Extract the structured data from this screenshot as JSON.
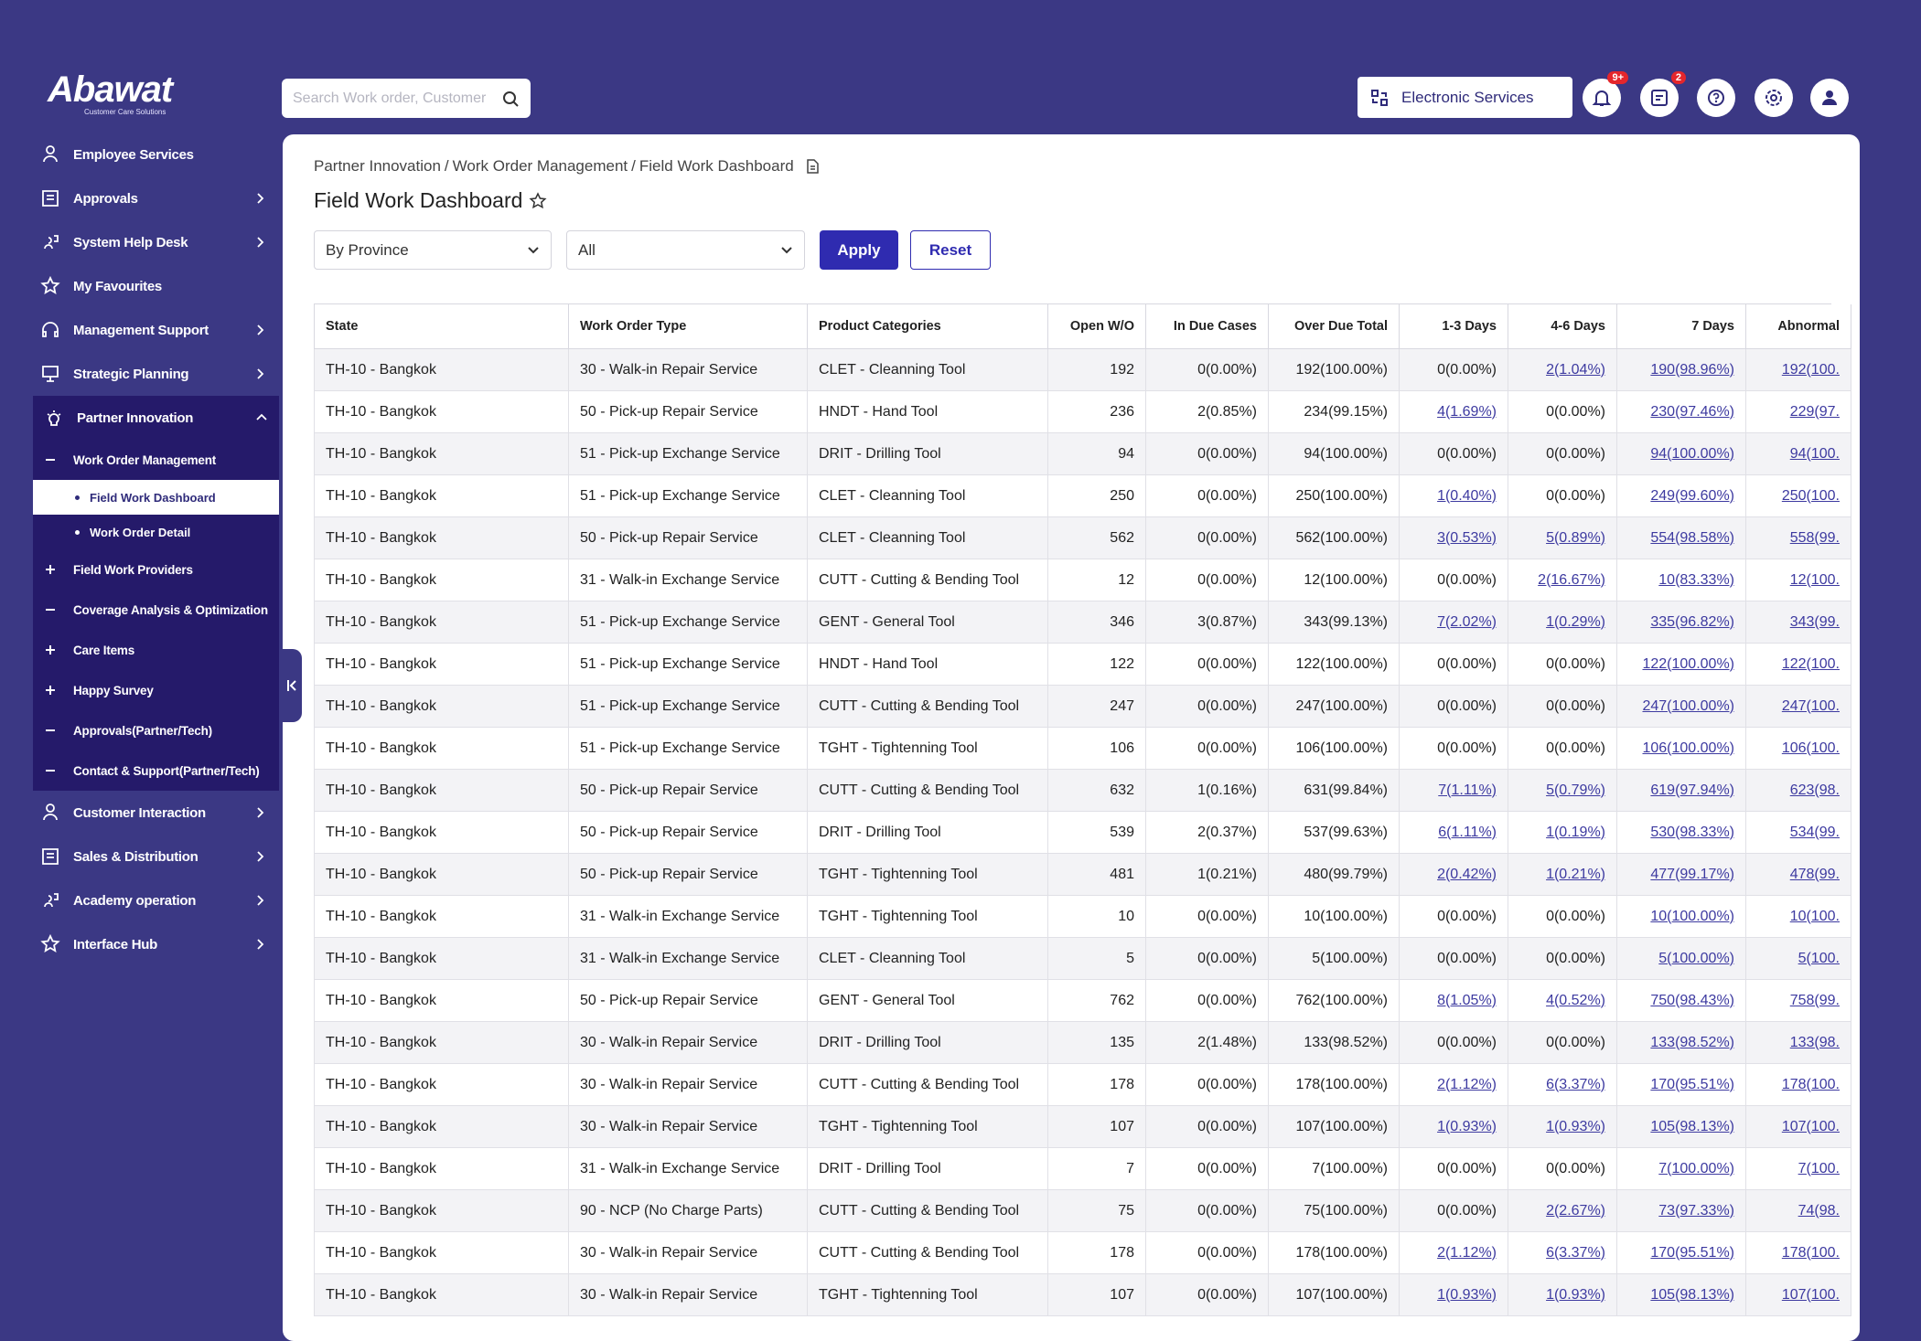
{
  "logo": {
    "name": "Abawat",
    "tagline": "Customer Care Solutions"
  },
  "search_placeholder": "Search Work order, Customer",
  "topbar": {
    "service": "Electronic Services",
    "notification_badge": "9+",
    "task_badge": "2"
  },
  "sidebar": [
    {
      "label": "Employee Services"
    },
    {
      "label": "Approvals",
      "arrow": "right"
    },
    {
      "label": "System Help Desk",
      "arrow": "right"
    },
    {
      "label": "My Favourites"
    },
    {
      "label": "Management Support",
      "arrow": "right"
    },
    {
      "label": "Strategic Planning",
      "arrow": "right"
    },
    {
      "label": "Partner Innovation",
      "arrow": "up",
      "children": [
        {
          "label": "Work Order Management",
          "expanded": true,
          "children": [
            {
              "label": "Field Work Dashboard",
              "active": true
            },
            {
              "label": "Work Order Detail"
            }
          ]
        },
        {
          "label": "Field Work Providers",
          "expanded": false
        },
        {
          "label": "Coverage Analysis & Optimization",
          "expanded": true
        },
        {
          "label": "Care Items",
          "expanded": false
        },
        {
          "label": "Happy Survey",
          "expanded": false
        },
        {
          "label": "Approvals(Partner/Tech)",
          "expanded": true
        },
        {
          "label": "Contact & Support(Partner/Tech)",
          "expanded": true
        }
      ]
    },
    {
      "label": "Customer Interaction",
      "arrow": "right"
    },
    {
      "label": "Sales & Distribution",
      "arrow": "right"
    },
    {
      "label": "Academy operation",
      "arrow": "right"
    },
    {
      "label": "Interface Hub",
      "arrow": "right"
    }
  ],
  "breadcrumb": [
    "Partner Innovation",
    "Work Order Management",
    "Field Work Dashboard"
  ],
  "breadcrumb_separator": "/",
  "page_title": "Field Work Dashboard",
  "filters": {
    "group": "By Province",
    "value": "All",
    "apply": "Apply",
    "reset": "Reset"
  },
  "table": {
    "columns": [
      "State",
      "Work Order Type",
      "Product Categories",
      "Open W/O",
      "In Due Cases",
      "Over Due Total",
      "1-3 Days",
      "4-6 Days",
      "7 Days",
      "Abnormal"
    ],
    "rows": [
      [
        "TH-10 - Bangkok",
        "30 - Walk-in Repair Service",
        "CLET - Cleanning Tool",
        192,
        "0(0.00%)",
        "192(100.00%)",
        "0(0.00%)",
        "2(1.04%)",
        "190(98.96%)",
        "192(100."
      ],
      [
        "TH-10 - Bangkok",
        "50 - Pick-up Repair Service",
        "HNDT - Hand Tool",
        236,
        "2(0.85%)",
        "234(99.15%)",
        "4(1.69%)",
        "0(0.00%)",
        "230(97.46%)",
        "229(97."
      ],
      [
        "TH-10 - Bangkok",
        "51 - Pick-up Exchange Service",
        "DRIT - Drilling Tool",
        94,
        "0(0.00%)",
        "94(100.00%)",
        "0(0.00%)",
        "0(0.00%)",
        "94(100.00%)",
        "94(100."
      ],
      [
        "TH-10 - Bangkok",
        "51 - Pick-up Exchange Service",
        "CLET - Cleanning Tool",
        250,
        "0(0.00%)",
        "250(100.00%)",
        "1(0.40%)",
        "0(0.00%)",
        "249(99.60%)",
        "250(100."
      ],
      [
        "TH-10 - Bangkok",
        "50 - Pick-up Repair Service",
        "CLET - Cleanning Tool",
        562,
        "0(0.00%)",
        "562(100.00%)",
        "3(0.53%)",
        "5(0.89%)",
        "554(98.58%)",
        "558(99."
      ],
      [
        "TH-10 - Bangkok",
        "31 - Walk-in Exchange Service",
        "CUTT - Cutting & Bending Tool",
        12,
        "0(0.00%)",
        "12(100.00%)",
        "0(0.00%)",
        "2(16.67%)",
        "10(83.33%)",
        "12(100."
      ],
      [
        "TH-10 - Bangkok",
        "51 - Pick-up Exchange Service",
        "GENT - General Tool",
        346,
        "3(0.87%)",
        "343(99.13%)",
        "7(2.02%)",
        "1(0.29%)",
        "335(96.82%)",
        "343(99."
      ],
      [
        "TH-10 - Bangkok",
        "51 - Pick-up Exchange Service",
        "HNDT - Hand Tool",
        122,
        "0(0.00%)",
        "122(100.00%)",
        "0(0.00%)",
        "0(0.00%)",
        "122(100.00%)",
        "122(100."
      ],
      [
        "TH-10 - Bangkok",
        "51 - Pick-up Exchange Service",
        "CUTT - Cutting & Bending Tool",
        247,
        "0(0.00%)",
        "247(100.00%)",
        "0(0.00%)",
        "0(0.00%)",
        "247(100.00%)",
        "247(100."
      ],
      [
        "TH-10 - Bangkok",
        "51 - Pick-up Exchange Service",
        "TGHT - Tightenning Tool",
        106,
        "0(0.00%)",
        "106(100.00%)",
        "0(0.00%)",
        "0(0.00%)",
        "106(100.00%)",
        "106(100."
      ],
      [
        "TH-10 - Bangkok",
        "50 - Pick-up Repair Service",
        "CUTT - Cutting & Bending Tool",
        632,
        "1(0.16%)",
        "631(99.84%)",
        "7(1.11%)",
        "5(0.79%)",
        "619(97.94%)",
        "623(98."
      ],
      [
        "TH-10 - Bangkok",
        "50 - Pick-up Repair Service",
        "DRIT - Drilling Tool",
        539,
        "2(0.37%)",
        "537(99.63%)",
        "6(1.11%)",
        "1(0.19%)",
        "530(98.33%)",
        "534(99."
      ],
      [
        "TH-10 - Bangkok",
        "50 - Pick-up Repair Service",
        "TGHT - Tightenning Tool",
        481,
        "1(0.21%)",
        "480(99.79%)",
        "2(0.42%)",
        "1(0.21%)",
        "477(99.17%)",
        "478(99."
      ],
      [
        "TH-10 - Bangkok",
        "31 - Walk-in Exchange Service",
        "TGHT - Tightenning Tool",
        10,
        "0(0.00%)",
        "10(100.00%)",
        "0(0.00%)",
        "0(0.00%)",
        "10(100.00%)",
        "10(100."
      ],
      [
        "TH-10 - Bangkok",
        "31 - Walk-in Exchange Service",
        "CLET - Cleanning Tool",
        5,
        "0(0.00%)",
        "5(100.00%)",
        "0(0.00%)",
        "0(0.00%)",
        "5(100.00%)",
        "5(100."
      ],
      [
        "TH-10 - Bangkok",
        "50 - Pick-up Repair Service",
        "GENT - General Tool",
        762,
        "0(0.00%)",
        "762(100.00%)",
        "8(1.05%)",
        "4(0.52%)",
        "750(98.43%)",
        "758(99."
      ],
      [
        "TH-10 - Bangkok",
        "30 - Walk-in Repair Service",
        "DRIT - Drilling Tool",
        135,
        "2(1.48%)",
        "133(98.52%)",
        "0(0.00%)",
        "0(0.00%)",
        "133(98.52%)",
        "133(98."
      ],
      [
        "TH-10 - Bangkok",
        "30 - Walk-in Repair Service",
        "CUTT - Cutting & Bending Tool",
        178,
        "0(0.00%)",
        "178(100.00%)",
        "2(1.12%)",
        "6(3.37%)",
        "170(95.51%)",
        "178(100."
      ],
      [
        "TH-10 - Bangkok",
        "30 - Walk-in Repair Service",
        "TGHT - Tightenning Tool",
        107,
        "0(0.00%)",
        "107(100.00%)",
        "1(0.93%)",
        "1(0.93%)",
        "105(98.13%)",
        "107(100."
      ],
      [
        "TH-10 - Bangkok",
        "31 - Walk-in Exchange Service",
        "DRIT - Drilling Tool",
        7,
        "0(0.00%)",
        "7(100.00%)",
        "0(0.00%)",
        "0(0.00%)",
        "7(100.00%)",
        "7(100."
      ],
      [
        "TH-10 - Bangkok",
        "90 - NCP (No Charge Parts)",
        "CUTT - Cutting & Bending Tool",
        75,
        "0(0.00%)",
        "75(100.00%)",
        "0(0.00%)",
        "2(2.67%)",
        "73(97.33%)",
        "74(98."
      ],
      [
        "TH-10 - Bangkok",
        "30 - Walk-in Repair Service",
        "CUTT - Cutting & Bending Tool",
        178,
        "0(0.00%)",
        "178(100.00%)",
        "2(1.12%)",
        "6(3.37%)",
        "170(95.51%)",
        "178(100."
      ],
      [
        "TH-10 - Bangkok",
        "30 - Walk-in Repair Service",
        "TGHT - Tightenning Tool",
        107,
        "0(0.00%)",
        "107(100.00%)",
        "1(0.93%)",
        "1(0.93%)",
        "105(98.13%)",
        "107(100."
      ]
    ]
  }
}
